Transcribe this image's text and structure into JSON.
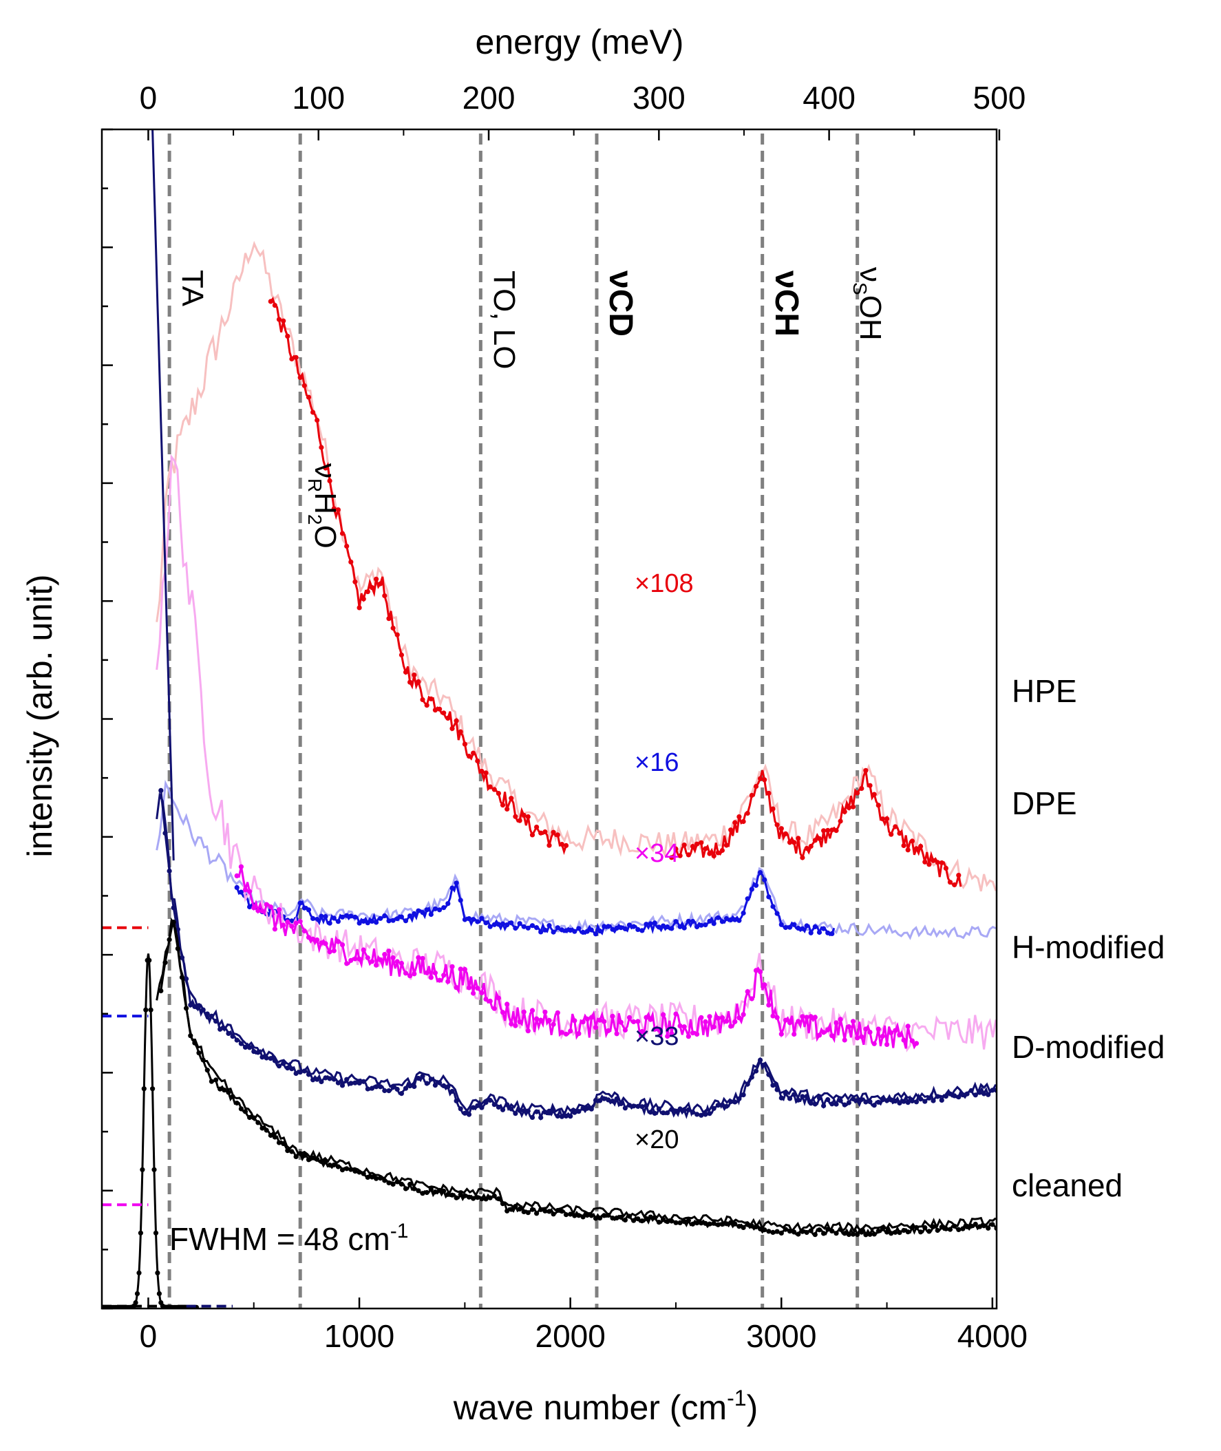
{
  "chart_data": {
    "type": "line",
    "x_axis": {
      "label": "wave number (cm",
      "label_sup": "-1",
      "label_end": ")",
      "range": [
        -220,
        4020
      ],
      "ticks": [
        "0",
        "1000",
        "2000",
        "3000",
        "4000"
      ],
      "tick_values": [
        0,
        1000,
        2000,
        3000,
        4000
      ]
    },
    "top_axis": {
      "label": "energy (meV)",
      "ticks": [
        "0",
        "100",
        "200",
        "300",
        "400",
        "500"
      ],
      "tick_values": [
        0,
        100,
        200,
        300,
        400,
        500
      ]
    },
    "y_axis": {
      "label": "intensity (arb. unit)",
      "range": [
        0,
        100
      ]
    },
    "vlines": [
      {
        "x": 100,
        "label": "TA",
        "bold": false
      },
      {
        "x": 720,
        "label": "νRH2O",
        "bold": false
      },
      {
        "x": 1575,
        "label": "TO, LO",
        "bold": false
      },
      {
        "x": 2125,
        "label": "νCD",
        "bold": true
      },
      {
        "x": 2910,
        "label": "νCH",
        "bold": true
      },
      {
        "x": 3360,
        "label": "νSOH",
        "bold": false
      }
    ],
    "vline_labels": {
      "ta": "TA",
      "water_nu": "ν",
      "water_sub": "R",
      "water_h": "H",
      "water_2": "2",
      "water_o": "O",
      "tolo": "TO, LO",
      "cd": "νCD",
      "ch": "νCH",
      "oh_nu": "ν",
      "oh_sub": "S",
      "oh_rest": "OH"
    },
    "series": [
      {
        "name": "HPE",
        "color": "#e8000b",
        "light_color": "#f7c0c0",
        "factor": "×108",
        "points": [
          [
            -220,
            0
          ],
          [
            100,
            70
          ],
          [
            500,
            90
          ],
          [
            700,
            80
          ],
          [
            800,
            75
          ],
          [
            900,
            67
          ],
          [
            1000,
            60
          ],
          [
            1100,
            62
          ],
          [
            1200,
            55
          ],
          [
            1300,
            52
          ],
          [
            1400,
            51
          ],
          [
            1500,
            48
          ],
          [
            1600,
            45
          ],
          [
            1700,
            43
          ],
          [
            1800,
            41
          ],
          [
            1900,
            40
          ],
          [
            2000,
            39
          ],
          [
            2200,
            39
          ],
          [
            2500,
            38.5
          ],
          [
            2700,
            39
          ],
          [
            2800,
            41
          ],
          [
            2910,
            45
          ],
          [
            3000,
            40
          ],
          [
            3100,
            39
          ],
          [
            3200,
            40
          ],
          [
            3300,
            42
          ],
          [
            3400,
            45
          ],
          [
            3500,
            41
          ],
          [
            3700,
            38
          ],
          [
            3850,
            36
          ],
          [
            4020,
            35
          ]
        ],
        "detail_range": [
          580,
          1980
        ],
        "detail_range2": [
          2480,
          3850
        ]
      },
      {
        "name": "DPE",
        "color": "#1010e0",
        "light_color": "#a8a8f5",
        "factor": "×16",
        "points": [
          [
            -220,
            0
          ],
          [
            80,
            44
          ],
          [
            200,
            40
          ],
          [
            400,
            36
          ],
          [
            500,
            34
          ],
          [
            700,
            33
          ],
          [
            720,
            34.5
          ],
          [
            800,
            33
          ],
          [
            1000,
            33
          ],
          [
            1200,
            33
          ],
          [
            1400,
            34
          ],
          [
            1460,
            36
          ],
          [
            1500,
            33
          ],
          [
            1700,
            32.5
          ],
          [
            2000,
            32
          ],
          [
            2500,
            32.5
          ],
          [
            2800,
            33
          ],
          [
            2900,
            37
          ],
          [
            3000,
            32.5
          ],
          [
            3200,
            32
          ],
          [
            3600,
            31.5
          ],
          [
            4020,
            31.5
          ]
        ],
        "detail_range": [
          420,
          3250
        ]
      },
      {
        "name": "H-modified",
        "color": "#f000f0",
        "light_color": "#f7aaf0",
        "factor": "×34",
        "points": [
          [
            -220,
            0
          ],
          [
            120,
            72
          ],
          [
            300,
            44
          ],
          [
            450,
            36
          ],
          [
            600,
            33
          ],
          [
            800,
            31
          ],
          [
            1000,
            30
          ],
          [
            1200,
            29
          ],
          [
            1400,
            28.5
          ],
          [
            1600,
            27
          ],
          [
            1700,
            25
          ],
          [
            1800,
            24.5
          ],
          [
            2000,
            24
          ],
          [
            2400,
            24
          ],
          [
            2700,
            24
          ],
          [
            2800,
            25
          ],
          [
            2900,
            28.5
          ],
          [
            3000,
            24
          ],
          [
            3300,
            23.5
          ],
          [
            3600,
            23
          ],
          [
            4020,
            23
          ]
        ],
        "detail_range": [
          420,
          3640
        ]
      },
      {
        "name": "D-modified",
        "color": "#101070",
        "light_color": "#101070",
        "factor": "×33",
        "points": [
          [
            -220,
            0
          ],
          [
            60,
            44
          ],
          [
            110,
            35
          ],
          [
            200,
            26
          ],
          [
            400,
            23
          ],
          [
            600,
            21
          ],
          [
            800,
            19.5
          ],
          [
            1000,
            19
          ],
          [
            1200,
            18.5
          ],
          [
            1300,
            19.5
          ],
          [
            1400,
            19
          ],
          [
            1450,
            18
          ],
          [
            1500,
            16.5
          ],
          [
            1600,
            17.5
          ],
          [
            1800,
            16.5
          ],
          [
            2000,
            16.5
          ],
          [
            2100,
            17
          ],
          [
            2150,
            18
          ],
          [
            2300,
            17
          ],
          [
            2600,
            16.5
          ],
          [
            2800,
            17.5
          ],
          [
            2900,
            21
          ],
          [
            3000,
            18
          ],
          [
            3200,
            17.5
          ],
          [
            3500,
            17.5
          ],
          [
            3800,
            18
          ],
          [
            4020,
            18.5
          ]
        ],
        "detail_range": [
          60,
          4020
        ]
      },
      {
        "name": "cleaned",
        "color": "#000000",
        "light_color": "#000000",
        "factor": "×20",
        "points": [
          [
            -220,
            0
          ],
          [
            120,
            33
          ],
          [
            200,
            23
          ],
          [
            300,
            19.5
          ],
          [
            500,
            16
          ],
          [
            700,
            13
          ],
          [
            900,
            12
          ],
          [
            1100,
            11
          ],
          [
            1300,
            10
          ],
          [
            1500,
            9.5
          ],
          [
            1650,
            9.5
          ],
          [
            1700,
            8.5
          ],
          [
            2000,
            8
          ],
          [
            2400,
            7.5
          ],
          [
            2800,
            7
          ],
          [
            3000,
            6.5
          ],
          [
            3400,
            6.5
          ],
          [
            4020,
            7
          ]
        ],
        "detail_range": [
          60,
          4020
        ]
      }
    ],
    "elastic_peak": {
      "label": "FWHM = 48 cm",
      "label_sup": "-1",
      "fwhm": 48,
      "peak_x": 0
    },
    "baseline_markers": [
      "HPE",
      "DPE",
      "H-modified",
      "D-modified",
      "cleaned"
    ]
  }
}
